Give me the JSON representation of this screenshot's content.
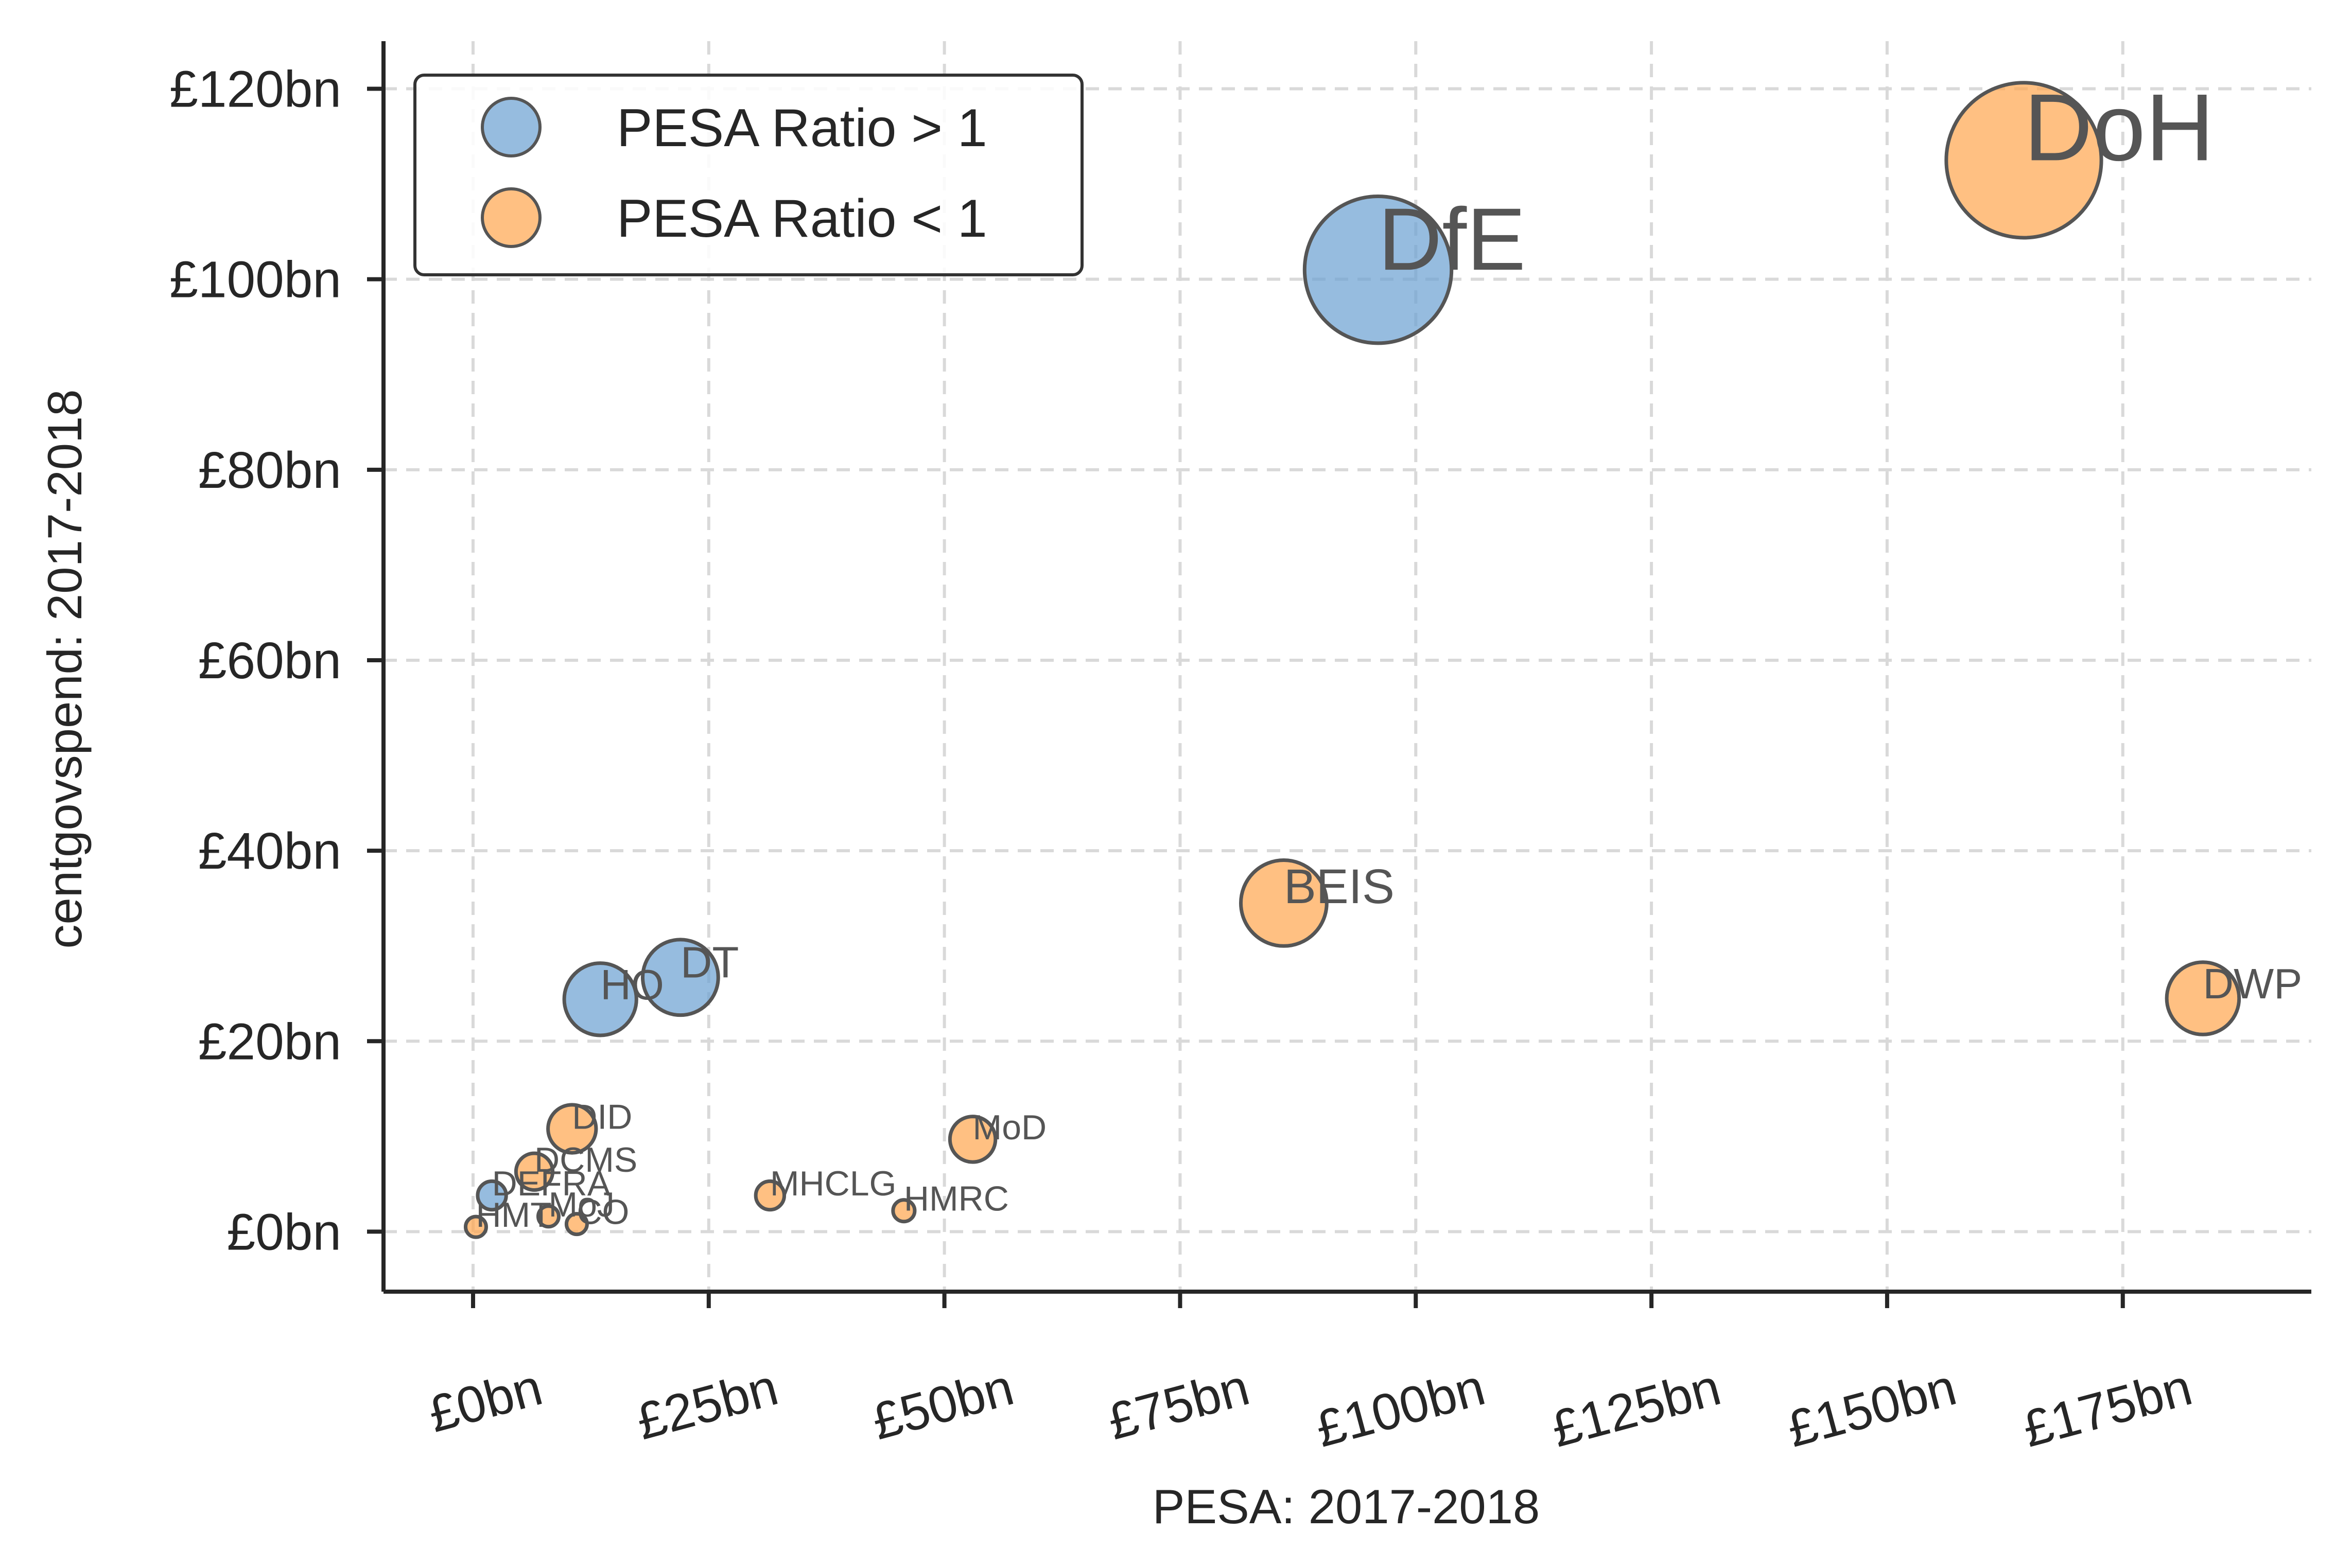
{
  "chart_data": {
    "type": "scatter",
    "xlabel": "PESA: 2017-2018",
    "ylabel": "centgovspend: 2017-2018",
    "xlim": [
      -9.5,
      195
    ],
    "ylim": [
      -6.3,
      125
    ],
    "x_ticks": [
      0,
      25,
      50,
      75,
      100,
      125,
      150,
      175
    ],
    "x_tick_labels": [
      "£0bn",
      "£25bn",
      "£50bn",
      "£75bn",
      "£100bn",
      "£125bn",
      "£150bn",
      "£175bn"
    ],
    "y_ticks": [
      0,
      20,
      40,
      60,
      80,
      100,
      120
    ],
    "y_tick_labels": [
      "£0bn",
      "£20bn",
      "£40bn",
      "£60bn",
      "£80bn",
      "£100bn",
      "£120bn"
    ],
    "grid": true,
    "legend": {
      "placement": "top-left",
      "entries": [
        {
          "label": "PESA Ratio > 1",
          "color": "#6a9fd1"
        },
        {
          "label": "PESA Ratio < 1",
          "color": "#ffa54d"
        }
      ]
    },
    "series": [
      {
        "name": "PESA Ratio > 1",
        "color": "#6a9fd1",
        "points": [
          {
            "label": "DfE",
            "x": 96,
            "y": 101
          },
          {
            "label": "DT",
            "x": 22,
            "y": 26.7
          },
          {
            "label": "HO",
            "x": 13.5,
            "y": 24.4
          },
          {
            "label": "DEFRA",
            "x": 2,
            "y": 3.8
          }
        ]
      },
      {
        "name": "PESA Ratio < 1",
        "color": "#ffa54d",
        "points": [
          {
            "label": "DoH",
            "x": 164.5,
            "y": 112.5
          },
          {
            "label": "BEIS",
            "x": 86,
            "y": 34.5
          },
          {
            "label": "DWP",
            "x": 183.5,
            "y": 24.5
          },
          {
            "label": "DID",
            "x": 10.5,
            "y": 10.8
          },
          {
            "label": "MoD",
            "x": 53,
            "y": 9.7
          },
          {
            "label": "DCMS",
            "x": 6.5,
            "y": 6.3
          },
          {
            "label": "MHCLG",
            "x": 31.5,
            "y": 3.8
          },
          {
            "label": "HMRC",
            "x": 45.7,
            "y": 2.2
          },
          {
            "label": "MoJ",
            "x": 8,
            "y": 1.6
          },
          {
            "label": "HMT",
            "x": 0.3,
            "y": 0.5
          },
          {
            "label": "CO",
            "x": 11,
            "y": 0.8
          }
        ]
      }
    ]
  }
}
